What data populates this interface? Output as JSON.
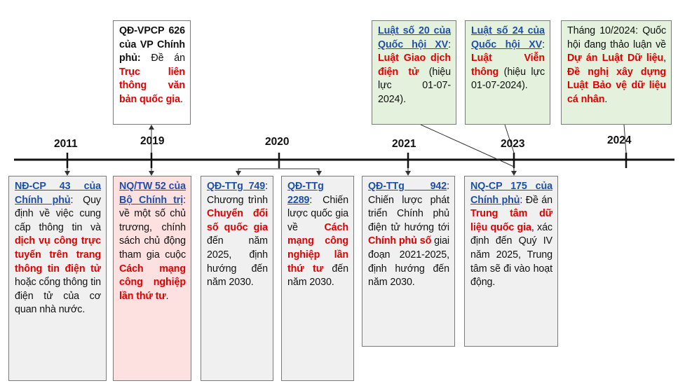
{
  "years": [
    "2011",
    "2019",
    "2020",
    "2021",
    "2023",
    "2024"
  ],
  "boxes": {
    "qd_vpcp_626": {
      "b1": "QĐ-VPCP 626 của VP Chính phủ:",
      "t1": " Đề án ",
      "r1": "Trục liên thông văn bản quốc gia",
      "t2": "."
    },
    "luat_20": {
      "l1": "Luật số 20 của Quốc hội XV",
      "t1": ": ",
      "r1": "Luật Giao dịch điện tử",
      "t2": " (hiệu lực 01-07-2024)."
    },
    "luat_24": {
      "l1": "Luật số 24 của Quốc hội XV",
      "t1": ": ",
      "r1": "Luật Viễn thông",
      "t2": " (hiệu lực 01-07-2024)."
    },
    "thang_10_2024": {
      "t1": "Tháng 10/2024: Quốc hội đang thảo luận về ",
      "r1": "Dự án Luật Dữ liệu",
      "t2": ", ",
      "r2": "Đề nghị xây dựng Luật Bảo vệ dữ liệu cá nhân",
      "t3": "."
    },
    "nd_cp_43": {
      "l1": "NĐ-CP 43 của Chính phủ",
      "t1": ": Quy định về việc cung cấp thông tin và ",
      "r1": "dịch vụ công trực tuyến trên trang thông tin điện tử",
      "t2": " hoặc cổng thông tin điện tử của cơ quan nhà nước."
    },
    "nq_tw_52": {
      "l1": "NQ/TW 52 của Bộ Chính trị",
      "t1": ": về một số chủ trương, chính sách chủ động tham gia cuộc ",
      "r1": "Cách mạng công nghiệp lần thứ tư",
      "t2": "."
    },
    "qd_ttg_749": {
      "l1": "QĐ-TTg 749",
      "t1": ": Chương trình ",
      "r1": "Chuyển đổi số quốc gia",
      "t2": " đến năm 2025, định hướng đến năm 2030."
    },
    "qd_ttg_2289": {
      "l1": "QĐ-TTg 2289",
      "t1": ": Chiến lược quốc gia về ",
      "r1": "Cách mạng công nghiệp lần thứ tư",
      "t2": " đến năm 2030."
    },
    "qd_ttg_942": {
      "l1": "QĐ-TTg 942",
      "t1": ": Chiến lược phát triển Chính phủ điện tử hướng tới ",
      "r1": "Chính phủ số",
      "t2": " giai đoạn 2021-2025, định hướng đến năm 2030."
    },
    "nq_cp_175": {
      "l1": "NQ-CP 175 của Chính phủ",
      "t1": ": Đề án ",
      "r1": "Trung tâm dữ liệu quốc gia",
      "t2": ", xác định đến Quý IV năm 2025, Trung tâm sẽ đi vào hoạt động."
    }
  }
}
